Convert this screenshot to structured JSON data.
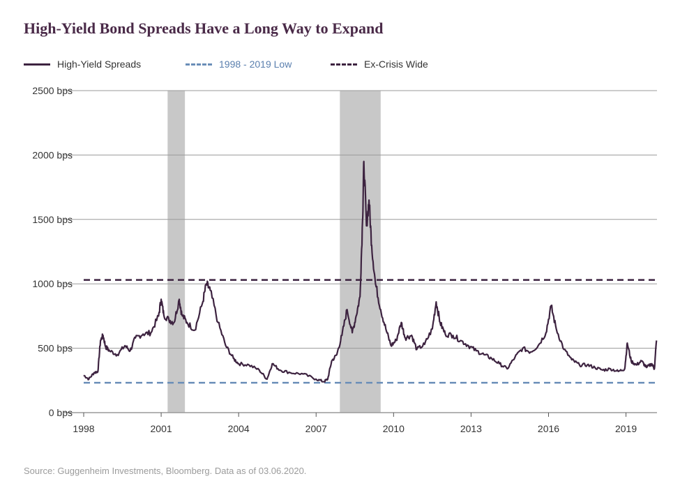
{
  "colors": {
    "series": "#3d2340",
    "low_line": "#6a8eb8",
    "wide_line": "#3d2340",
    "recession": "#c8c8c8",
    "grid": "#9a9a9a",
    "title": "#4a2a48"
  },
  "chart_data": {
    "type": "line",
    "title": "High-Yield Bond Spreads Have a Long Way to Expand",
    "source": "Source: Guggenheim Investments, Bloomberg. Data as of 03.06.2020.",
    "ylim": [
      0,
      2500
    ],
    "xlim": [
      1998.0,
      2020.2
    ],
    "ytick_values": [
      0,
      500,
      1000,
      1500,
      2000,
      2500
    ],
    "ytick_labels": [
      "0 bps",
      "500 bps",
      "1000 bps",
      "1500 bps",
      "2000 bps",
      "2500 bps"
    ],
    "xtick_values": [
      1998,
      2001,
      2004,
      2007,
      2010,
      2013,
      2016,
      2019
    ],
    "xtick_labels": [
      "1998",
      "2001",
      "2004",
      "2007",
      "2010",
      "2013",
      "2016",
      "2019"
    ],
    "grid": "horizontal",
    "legend": {
      "position": "top-left",
      "entries": [
        {
          "label": "High-Yield Spreads",
          "style": "solid"
        },
        {
          "label": "1998 - 2019 Low",
          "style": "dashed"
        },
        {
          "label": "Ex-Crisis Wide",
          "style": "dashed"
        }
      ]
    },
    "reference_lines": [
      {
        "name": "1998 - 2019 Low",
        "value": 232
      },
      {
        "name": "Ex-Crisis Wide",
        "value": 1030
      }
    ],
    "recessions": [
      [
        2001.25,
        2001.92
      ],
      [
        2007.92,
        2009.5
      ]
    ],
    "series": [
      {
        "name": "High-Yield Spreads",
        "x": [
          1998.0,
          1998.2,
          1998.4,
          1998.55,
          1998.65,
          1998.75,
          1998.85,
          1999.0,
          1999.3,
          1999.6,
          1999.8,
          2000.0,
          2000.3,
          2000.6,
          2000.9,
          2001.0,
          2001.1,
          2001.3,
          2001.5,
          2001.7,
          2001.8,
          2002.0,
          2002.3,
          2002.6,
          2002.75,
          2002.9,
          2003.2,
          2003.5,
          2003.8,
          2004.0,
          2004.4,
          2004.8,
          2005.1,
          2005.3,
          2005.6,
          2006.0,
          2006.5,
          2007.0,
          2007.3,
          2007.45,
          2007.6,
          2007.8,
          2008.0,
          2008.2,
          2008.4,
          2008.55,
          2008.7,
          2008.8,
          2008.85,
          2008.95,
          2009.05,
          2009.15,
          2009.3,
          2009.5,
          2009.7,
          2009.9,
          2010.1,
          2010.3,
          2010.45,
          2010.7,
          2010.9,
          2011.2,
          2011.5,
          2011.65,
          2011.8,
          2012.0,
          2012.3,
          2012.6,
          2012.9,
          2013.2,
          2013.5,
          2013.8,
          2014.1,
          2014.4,
          2014.7,
          2015.0,
          2015.3,
          2015.6,
          2015.9,
          2016.1,
          2016.3,
          2016.6,
          2016.9,
          2017.2,
          2017.5,
          2017.8,
          2018.1,
          2018.4,
          2018.7,
          2018.95,
          2019.05,
          2019.2,
          2019.4,
          2019.6,
          2019.8,
          2020.0,
          2020.1,
          2020.18
        ],
        "values": [
          290,
          260,
          310,
          320,
          560,
          600,
          510,
          480,
          450,
          520,
          480,
          580,
          610,
          620,
          750,
          880,
          760,
          720,
          700,
          880,
          760,
          700,
          640,
          850,
          1000,
          950,
          700,
          520,
          420,
          380,
          370,
          330,
          260,
          380,
          330,
          310,
          300,
          260,
          240,
          260,
          400,
          450,
          600,
          800,
          620,
          750,
          900,
          1500,
          1950,
          1450,
          1650,
          1300,
          1000,
          800,
          650,
          520,
          560,
          700,
          580,
          600,
          490,
          530,
          650,
          860,
          700,
          610,
          600,
          560,
          520,
          480,
          450,
          420,
          380,
          340,
          430,
          500,
          470,
          520,
          620,
          830,
          650,
          490,
          410,
          370,
          370,
          350,
          330,
          340,
          320,
          340,
          540,
          400,
          370,
          400,
          350,
          380,
          340,
          560
        ]
      }
    ]
  }
}
